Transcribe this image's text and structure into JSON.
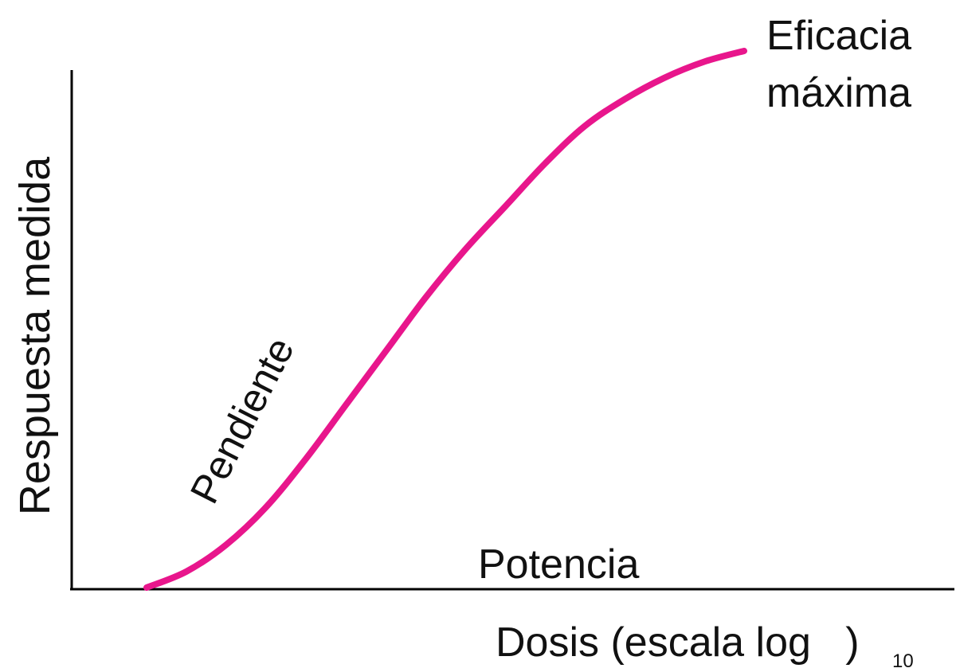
{
  "chart_data": {
    "type": "line",
    "title": "",
    "xlabel": "Dosis (escala log   )",
    "xlabel_subscript": "10",
    "ylabel": "Respuesta medida",
    "x_scale": "log",
    "grid": false,
    "legend": "none",
    "series": [
      {
        "color": "#e8168c",
        "points": [
          {
            "x": 0.0,
            "y": 0.0
          },
          {
            "x": 0.05,
            "y": 0.03
          },
          {
            "x": 0.1,
            "y": 0.08
          },
          {
            "x": 0.15,
            "y": 0.15
          },
          {
            "x": 0.2,
            "y": 0.24
          },
          {
            "x": 0.25,
            "y": 0.34
          },
          {
            "x": 0.3,
            "y": 0.44
          },
          {
            "x": 0.35,
            "y": 0.54
          },
          {
            "x": 0.4,
            "y": 0.63
          },
          {
            "x": 0.45,
            "y": 0.71
          },
          {
            "x": 0.5,
            "y": 0.79
          },
          {
            "x": 0.55,
            "y": 0.86
          },
          {
            "x": 0.6,
            "y": 0.91
          },
          {
            "x": 0.65,
            "y": 0.95
          },
          {
            "x": 0.7,
            "y": 0.98
          },
          {
            "x": 0.75,
            "y": 1.0
          }
        ]
      }
    ],
    "annotations": {
      "max_efficacy_line1": "Eficacia",
      "max_efficacy_line2": "máxima",
      "slope": "Pendiente",
      "potency": "Potencia"
    }
  }
}
